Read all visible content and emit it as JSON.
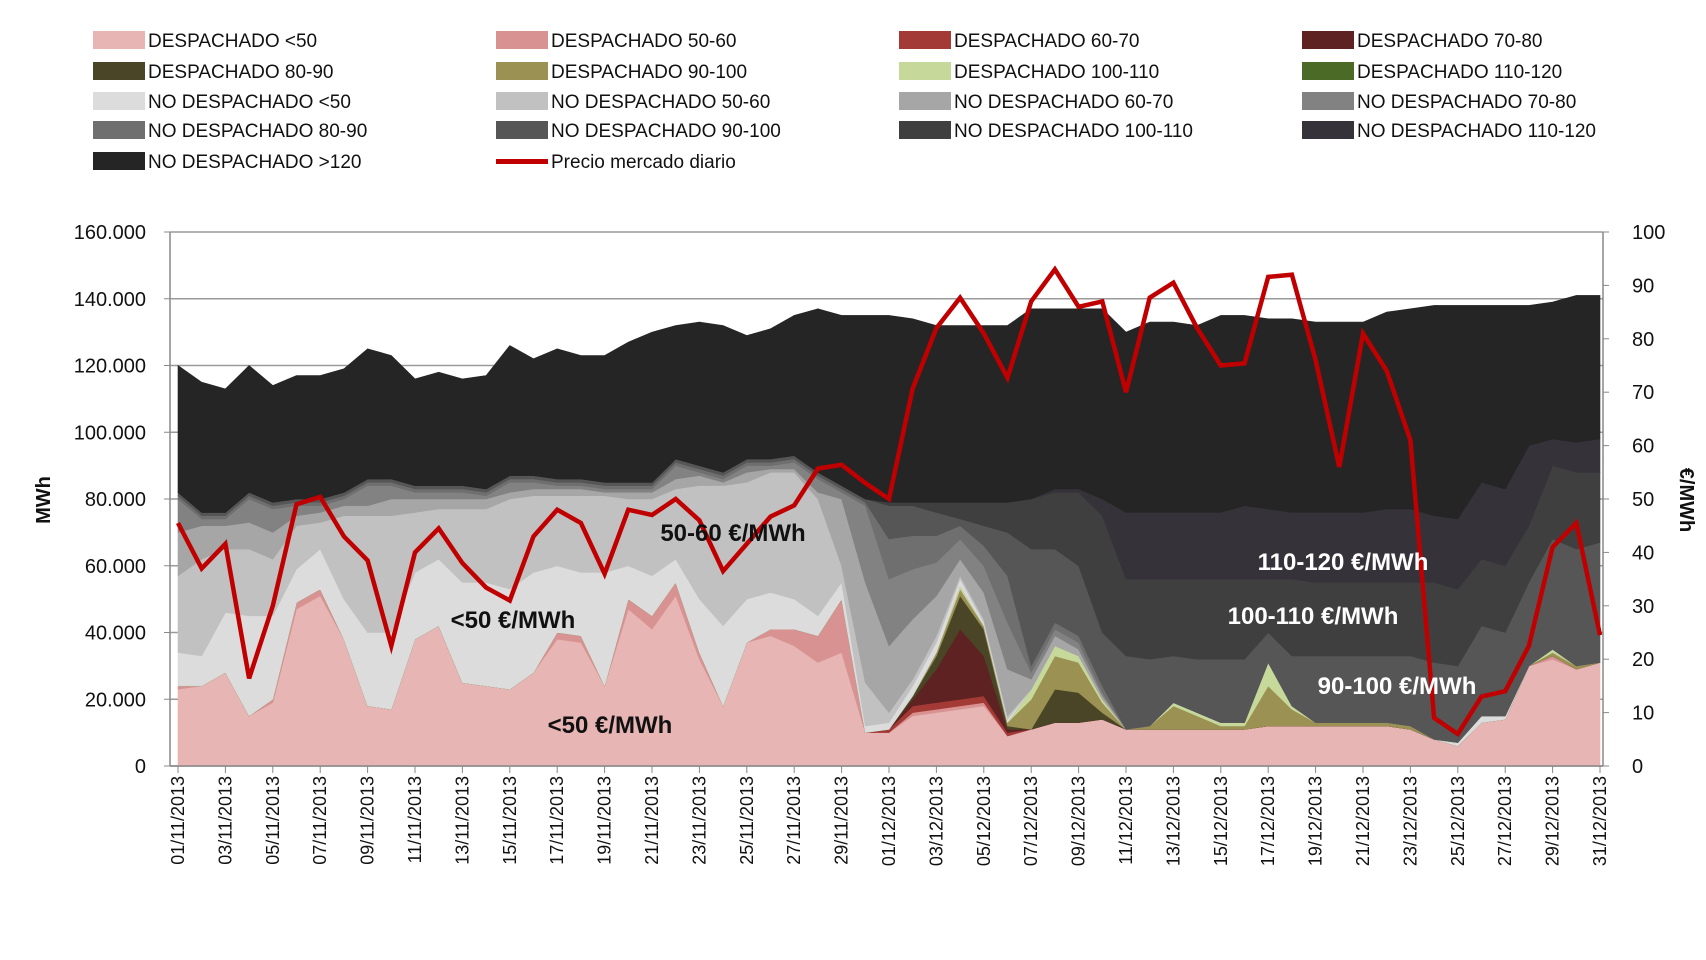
{
  "chart_data": {
    "type": "area",
    "stacked": true,
    "ylabel": "MWh",
    "y2label": "€/MWh",
    "ylim": [
      0,
      160000
    ],
    "y2lim": [
      0,
      100
    ],
    "yticks": [
      "0",
      "20.000",
      "40.000",
      "60.000",
      "80.000",
      "100.000",
      "120.000",
      "140.000",
      "160.000"
    ],
    "y2ticks": [
      "0",
      "10",
      "20",
      "30",
      "40",
      "50",
      "60",
      "70",
      "80",
      "90",
      "100"
    ],
    "grid": true,
    "legend_position": "top",
    "xtick_labels": [
      "01/11/2013",
      "03/11/2013",
      "05/11/2013",
      "07/11/2013",
      "09/11/2013",
      "11/11/2013",
      "13/11/2013",
      "15/11/2013",
      "17/11/2013",
      "19/11/2013",
      "21/11/2013",
      "23/11/2013",
      "25/11/2013",
      "27/11/2013",
      "29/11/2013",
      "01/12/2013",
      "03/12/2013",
      "05/12/2013",
      "07/12/2013",
      "09/12/2013",
      "11/12/2013",
      "13/12/2013",
      "15/12/2013",
      "17/12/2013",
      "19/12/2013",
      "21/12/2013",
      "23/12/2013",
      "25/12/2013",
      "27/12/2013",
      "29/12/2013",
      "31/12/2013"
    ],
    "x_range": [
      "01/11/2013",
      "31/12/2013"
    ],
    "series": [
      {
        "name": "DESPACHADO <50",
        "color": "#e8b5b5",
        "values": [
          23000,
          24000,
          28000,
          15000,
          19000,
          47000,
          51000,
          38000,
          18000,
          17000,
          38000,
          42000,
          25000,
          24000,
          23000,
          28000,
          38000,
          37000,
          24000,
          47000,
          41000,
          51000,
          32000,
          18000,
          37000,
          39000,
          36000,
          31000,
          34000,
          10000,
          10000,
          15000,
          16000,
          17000,
          18000,
          9000,
          11000,
          13000,
          13000,
          14000,
          11000,
          11000,
          11000,
          11000,
          11000,
          11000,
          12000,
          12000,
          12000,
          12000,
          12000,
          12000,
          11000,
          8000,
          6000,
          13000,
          14000,
          30000,
          32000,
          29000,
          31000
        ]
      },
      {
        "name": "DESPACHADO 50-60",
        "color": "#d99292",
        "values": [
          1000,
          0,
          0,
          0,
          1000,
          2000,
          2000,
          0,
          0,
          0,
          0,
          0,
          0,
          0,
          0,
          0,
          2000,
          2000,
          0,
          3000,
          4000,
          4000,
          2000,
          0,
          0,
          2000,
          5000,
          8000,
          16000,
          0,
          0,
          1000,
          1000,
          1000,
          1000,
          0,
          0,
          0,
          0,
          0,
          0,
          0,
          0,
          0,
          0,
          0,
          0,
          0,
          0,
          0,
          0,
          0,
          0,
          0,
          0,
          0,
          0,
          0,
          1000,
          0,
          0
        ]
      },
      {
        "name": "DESPACHADO 60-70",
        "color": "#a33a36",
        "values": [
          0,
          0,
          0,
          0,
          0,
          0,
          0,
          0,
          0,
          0,
          0,
          0,
          0,
          0,
          0,
          0,
          0,
          0,
          0,
          0,
          0,
          0,
          0,
          0,
          0,
          0,
          0,
          0,
          0,
          0,
          1000,
          2000,
          2000,
          2000,
          2000,
          1000,
          0,
          0,
          0,
          0,
          0,
          0,
          0,
          0,
          0,
          0,
          0,
          0,
          0,
          0,
          0,
          0,
          0,
          0,
          0,
          0,
          0,
          0,
          0,
          0,
          0
        ]
      },
      {
        "name": "DESPACHADO 70-80",
        "color": "#5e2222",
        "values": [
          0,
          0,
          0,
          0,
          0,
          0,
          0,
          0,
          0,
          0,
          0,
          0,
          0,
          0,
          0,
          0,
          0,
          0,
          0,
          0,
          0,
          0,
          0,
          0,
          0,
          0,
          0,
          0,
          0,
          0,
          0,
          2000,
          10000,
          21000,
          12000,
          1000,
          0,
          0,
          0,
          0,
          0,
          0,
          0,
          0,
          0,
          0,
          0,
          0,
          0,
          0,
          0,
          0,
          0,
          0,
          0,
          0,
          0,
          0,
          0,
          0,
          0
        ]
      },
      {
        "name": "DESPACHADO 80-90",
        "color": "#4a4526",
        "values": [
          0,
          0,
          0,
          0,
          0,
          0,
          0,
          0,
          0,
          0,
          0,
          0,
          0,
          0,
          0,
          0,
          0,
          0,
          0,
          0,
          0,
          0,
          0,
          0,
          0,
          0,
          0,
          0,
          0,
          0,
          0,
          1000,
          4000,
          10000,
          8000,
          1000,
          0,
          10000,
          9000,
          2000,
          0,
          0,
          0,
          0,
          0,
          0,
          0,
          0,
          0,
          0,
          0,
          0,
          0,
          0,
          0,
          0,
          0,
          0,
          0,
          0,
          0
        ]
      },
      {
        "name": "DESPACHADO 90-100",
        "color": "#9a9152",
        "values": [
          0,
          0,
          0,
          0,
          0,
          0,
          0,
          0,
          0,
          0,
          0,
          0,
          0,
          0,
          0,
          0,
          0,
          0,
          0,
          0,
          0,
          0,
          0,
          0,
          0,
          0,
          0,
          0,
          0,
          0,
          0,
          0,
          1000,
          2000,
          1000,
          1000,
          9000,
          10000,
          9000,
          3000,
          0,
          1000,
          7000,
          4000,
          1000,
          1000,
          12000,
          5000,
          1000,
          1000,
          1000,
          1000,
          1000,
          0,
          0,
          0,
          0,
          0,
          1000,
          1000,
          0
        ]
      },
      {
        "name": "DESPACHADO 100-110",
        "color": "#c6d99b",
        "values": [
          0,
          0,
          0,
          0,
          0,
          0,
          0,
          0,
          0,
          0,
          0,
          0,
          0,
          0,
          0,
          0,
          0,
          0,
          0,
          0,
          0,
          0,
          0,
          0,
          0,
          0,
          0,
          0,
          0,
          0,
          0,
          0,
          0,
          1000,
          0,
          0,
          3000,
          3000,
          2000,
          1000,
          0,
          0,
          1000,
          1000,
          1000,
          1000,
          7000,
          1000,
          0,
          0,
          0,
          0,
          0,
          0,
          0,
          0,
          0,
          0,
          1000,
          0,
          0
        ]
      },
      {
        "name": "DESPACHADO 110-120",
        "color": "#4b6a26",
        "values": [
          0,
          0,
          0,
          0,
          0,
          0,
          0,
          0,
          0,
          0,
          0,
          0,
          0,
          0,
          0,
          0,
          0,
          0,
          0,
          0,
          0,
          0,
          0,
          0,
          0,
          0,
          0,
          0,
          0,
          0,
          0,
          0,
          0,
          0,
          0,
          0,
          0,
          0,
          0,
          0,
          0,
          0,
          0,
          0,
          0,
          0,
          0,
          0,
          0,
          0,
          0,
          0,
          0,
          0,
          0,
          0,
          0,
          0,
          0,
          0,
          0
        ]
      },
      {
        "name": "NO DESPACHADO <50",
        "color": "#dcdcdc",
        "values": [
          10000,
          9000,
          18000,
          30000,
          25000,
          10000,
          12000,
          12000,
          22000,
          23000,
          20000,
          20000,
          30000,
          31000,
          30000,
          30000,
          20000,
          19000,
          34000,
          10000,
          12000,
          7000,
          16000,
          24000,
          13000,
          11000,
          9000,
          6000,
          5000,
          2000,
          2000,
          3000,
          3000,
          2000,
          1000,
          1000,
          0,
          0,
          0,
          0,
          0,
          0,
          0,
          0,
          0,
          0,
          0,
          0,
          0,
          0,
          0,
          0,
          0,
          0,
          1000,
          2000,
          1000,
          0,
          0,
          0,
          0
        ]
      },
      {
        "name": "NO DESPACHADO 50-60",
        "color": "#c1c1c1",
        "values": [
          23000,
          29000,
          19000,
          20000,
          17000,
          13000,
          8000,
          25000,
          35000,
          35000,
          18000,
          15000,
          22000,
          22000,
          27000,
          23000,
          21000,
          23000,
          23000,
          20000,
          23000,
          21000,
          34000,
          42000,
          35000,
          36000,
          38000,
          35000,
          5000,
          13000,
          3000,
          2000,
          2000,
          1000,
          1000,
          1000,
          0,
          0,
          0,
          0,
          0,
          0,
          0,
          0,
          0,
          0,
          0,
          0,
          0,
          0,
          0,
          0,
          0,
          0,
          0,
          0,
          0,
          0,
          0,
          0,
          0
        ]
      },
      {
        "name": "NO DESPACHADO 60-70",
        "color": "#a6a6a6",
        "values": [
          13000,
          10000,
          7000,
          8000,
          8000,
          3000,
          3000,
          3000,
          3000,
          5000,
          4000,
          3000,
          3000,
          3000,
          2000,
          2000,
          2000,
          2000,
          1000,
          2000,
          2000,
          3000,
          3000,
          1000,
          3000,
          1000,
          1000,
          2000,
          20000,
          30000,
          20000,
          18000,
          12000,
          5000,
          8000,
          14000,
          3000,
          3000,
          2000,
          1000,
          0,
          0,
          0,
          0,
          0,
          0,
          0,
          0,
          0,
          0,
          0,
          0,
          0,
          0,
          0,
          0,
          0,
          0,
          0,
          0,
          0
        ]
      },
      {
        "name": "NO DESPACHADO 70-80",
        "color": "#828282",
        "values": [
          10000,
          2000,
          2000,
          7000,
          7000,
          3000,
          2000,
          2000,
          6000,
          4000,
          2000,
          2000,
          2000,
          1000,
          3000,
          2000,
          1000,
          1000,
          1000,
          1000,
          1000,
          4000,
          1000,
          1000,
          2000,
          1000,
          2000,
          4000,
          2000,
          23000,
          20000,
          15000,
          10000,
          6000,
          8000,
          14000,
          2000,
          2000,
          2000,
          1000,
          0,
          0,
          0,
          0,
          0,
          0,
          0,
          0,
          0,
          0,
          0,
          0,
          0,
          0,
          0,
          0,
          0,
          0,
          0,
          0,
          0
        ]
      },
      {
        "name": "NO DESPACHADO 80-90",
        "color": "#6f6f6f",
        "values": [
          1000,
          1000,
          1000,
          1000,
          1000,
          1000,
          1000,
          1000,
          1000,
          1000,
          1000,
          1000,
          1000,
          1000,
          1000,
          1000,
          1000,
          1000,
          1000,
          1000,
          1000,
          1000,
          1000,
          1000,
          1000,
          1000,
          1000,
          1000,
          1000,
          1000,
          12000,
          10000,
          8000,
          4000,
          6000,
          14000,
          2000,
          2000,
          2000,
          2000,
          0,
          0,
          0,
          0,
          0,
          0,
          0,
          0,
          0,
          0,
          0,
          0,
          0,
          0,
          0,
          0,
          0,
          0,
          0,
          0,
          0
        ]
      },
      {
        "name": "NO DESPACHADO 90-100",
        "color": "#565656",
        "values": [
          1000,
          1000,
          1000,
          1000,
          1000,
          1000,
          1000,
          1000,
          1000,
          1000,
          1000,
          1000,
          1000,
          1000,
          1000,
          1000,
          1000,
          1000,
          1000,
          1000,
          1000,
          1000,
          1000,
          1000,
          1000,
          1000,
          1000,
          1000,
          1000,
          1000,
          10000,
          9000,
          7000,
          2000,
          6000,
          13000,
          35000,
          22000,
          21000,
          16000,
          22000,
          20000,
          14000,
          16000,
          19000,
          19000,
          9000,
          15000,
          20000,
          20000,
          20000,
          20000,
          21000,
          23000,
          23000,
          27000,
          25000,
          25000,
          33000,
          35000,
          36000
        ]
      },
      {
        "name": "NO DESPACHADO 100-110",
        "color": "#3f3f3f",
        "values": [
          0,
          0,
          0,
          0,
          0,
          0,
          0,
          0,
          0,
          0,
          0,
          0,
          0,
          0,
          0,
          0,
          0,
          0,
          0,
          0,
          0,
          0,
          0,
          0,
          0,
          0,
          0,
          0,
          0,
          0,
          1000,
          1000,
          3000,
          5000,
          7000,
          9000,
          15000,
          17000,
          22000,
          35000,
          23000,
          24000,
          23000,
          24000,
          24000,
          24000,
          16000,
          23000,
          22000,
          22000,
          22000,
          22000,
          22000,
          24000,
          23000,
          20000,
          20000,
          17000,
          22000,
          23000,
          21000
        ]
      },
      {
        "name": "NO DESPACHADO 110-120",
        "color": "#36323a",
        "values": [
          0,
          0,
          0,
          0,
          0,
          0,
          0,
          0,
          0,
          0,
          0,
          0,
          0,
          0,
          0,
          0,
          0,
          0,
          0,
          0,
          0,
          0,
          0,
          0,
          0,
          0,
          0,
          0,
          0,
          0,
          0,
          0,
          0,
          0,
          0,
          0,
          0,
          1000,
          1000,
          5000,
          20000,
          20000,
          20000,
          20000,
          20000,
          22000,
          21000,
          20000,
          21000,
          21000,
          21000,
          22000,
          22000,
          20000,
          21000,
          23000,
          23000,
          24000,
          8000,
          9000,
          10000
        ]
      },
      {
        "name": "NO DESPACHADO >120",
        "color": "#252525",
        "values": [
          38000,
          39000,
          37000,
          38000,
          35000,
          37000,
          37000,
          37000,
          39000,
          37000,
          32000,
          34000,
          32000,
          34000,
          39000,
          35000,
          39000,
          37000,
          38000,
          42000,
          45000,
          40000,
          43000,
          44000,
          37000,
          39000,
          42000,
          49000,
          51000,
          55000,
          56000,
          55000,
          53000,
          53000,
          53000,
          53000,
          57000,
          54000,
          54000,
          57000,
          54000,
          57000,
          57000,
          56000,
          59000,
          57000,
          57000,
          58000,
          57000,
          57000,
          57000,
          59000,
          60000,
          63000,
          64000,
          53000,
          55000,
          42000,
          41000,
          44000,
          43000
        ]
      }
    ],
    "line_series": {
      "name": "Precio mercado diario",
      "axis": "right",
      "color": "#c00000",
      "values": [
        45.5,
        37,
        41.6,
        16.4,
        30,
        49,
        50.4,
        43,
        38.5,
        22.5,
        40,
        44.5,
        38,
        33.4,
        31,
        43,
        48,
        45.5,
        36,
        48,
        47,
        50,
        46,
        36.5,
        41.6,
        46.7,
        48.8,
        55.7,
        56.4,
        53,
        50,
        70.7,
        82,
        87.7,
        81,
        72.7,
        87,
        93,
        86,
        87,
        70,
        87.7,
        90.5,
        82,
        75,
        75.4,
        91.6,
        92,
        76,
        56,
        81,
        74,
        61,
        9,
        6,
        13,
        14,
        22.5,
        41,
        45.5,
        24.5
      ]
    },
    "annotations": [
      {
        "text": "<50 €/MWh",
        "color": "#111111"
      },
      {
        "text": "<50 €/MWh",
        "color": "#111111"
      },
      {
        "text": "50-60 €/MWh",
        "color": "#111111"
      },
      {
        "text": "110-120 €/MWh",
        "color": "#ffffff"
      },
      {
        "text": "100-110 €/MWh",
        "color": "#ffffff"
      },
      {
        "text": "90-100 €/MWh",
        "color": "#ffffff"
      }
    ]
  }
}
